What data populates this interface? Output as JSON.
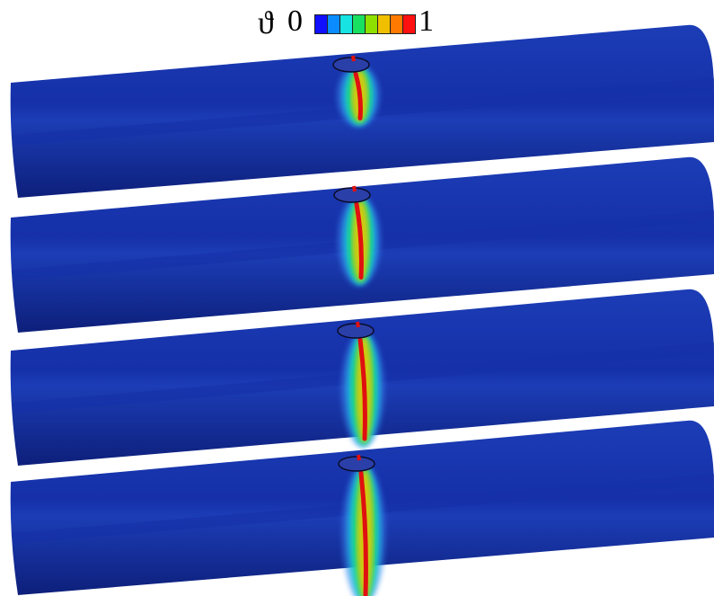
{
  "legend": {
    "symbol": "ϑ",
    "min_label": "0",
    "max_label": "1",
    "colors": [
      "#1010ff",
      "#0a8cff",
      "#17e3e3",
      "#18e060",
      "#8ee000",
      "#f0c000",
      "#ff7a00",
      "#ff1010"
    ]
  },
  "colors": {
    "pipe_top": "#1c3db6",
    "pipe_mid": "#1530a8",
    "pipe_bottom": "#0d1f7a",
    "hole": "#2b3fa8",
    "crack_core": "#e01010",
    "crack_band": [
      "#3a8cf0",
      "#18c9d9",
      "#28e05a",
      "#f0c800"
    ]
  },
  "panels": [
    {
      "crack_extent": 0.25
    },
    {
      "crack_extent": 0.5
    },
    {
      "crack_extent": 0.75
    },
    {
      "crack_extent": 1.0
    }
  ]
}
